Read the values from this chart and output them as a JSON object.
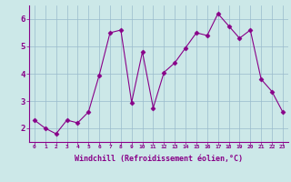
{
  "x": [
    0,
    1,
    2,
    3,
    4,
    5,
    6,
    7,
    8,
    9,
    10,
    11,
    12,
    13,
    14,
    15,
    16,
    17,
    18,
    19,
    20,
    21,
    22,
    23
  ],
  "y": [
    2.3,
    2.0,
    1.8,
    2.3,
    2.2,
    2.6,
    3.95,
    5.5,
    5.6,
    2.95,
    4.8,
    2.75,
    4.05,
    4.4,
    4.95,
    5.5,
    5.4,
    6.2,
    5.75,
    5.3,
    5.6,
    3.8,
    3.35,
    2.6
  ],
  "line_color": "#880088",
  "marker": "D",
  "markersize": 2.5,
  "linewidth": 0.8,
  "bg_color": "#cce8e8",
  "grid_color": "#99bbcc",
  "xlabel": "Windchill (Refroidissement éolien,°C)",
  "xlabel_color": "#880088",
  "ylabel_ticks": [
    2,
    3,
    4,
    5,
    6
  ],
  "xtick_labels": [
    "0",
    "1",
    "2",
    "3",
    "4",
    "5",
    "6",
    "7",
    "8",
    "9",
    "10",
    "11",
    "12",
    "13",
    "14",
    "15",
    "16",
    "17",
    "18",
    "19",
    "20",
    "21",
    "22",
    "23"
  ],
  "ylim": [
    1.5,
    6.5
  ],
  "xlim": [
    -0.5,
    23.5
  ]
}
